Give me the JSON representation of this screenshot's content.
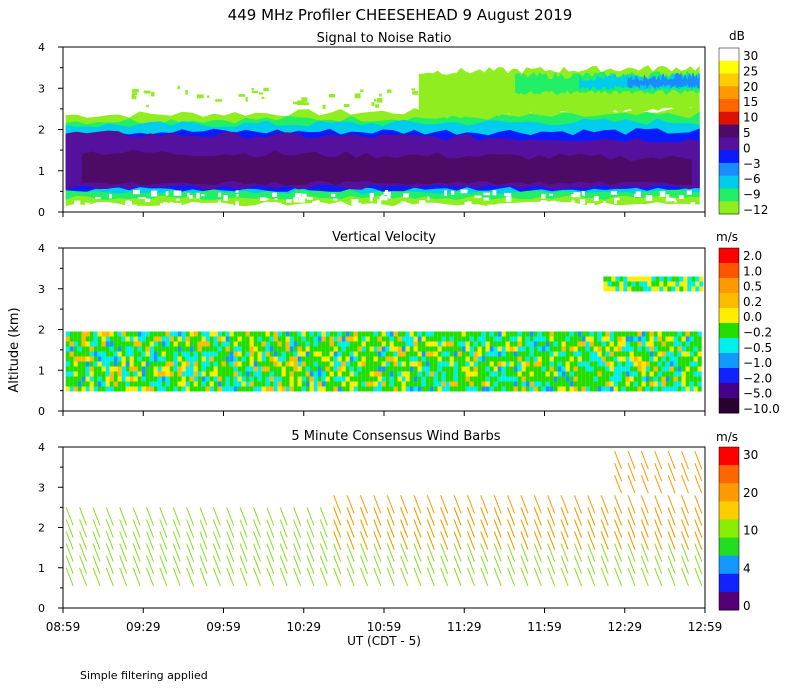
{
  "figure": {
    "title": "449 MHz Profiler CHEESEHEAD  9 August 2019",
    "ylabel": "Altitude (km)",
    "xlabel": "UT  (CDT - 5)",
    "footnote": "Simple filtering applied",
    "x_ticks": [
      "08:59",
      "09:29",
      "09:59",
      "10:29",
      "10:59",
      "11:29",
      "11:59",
      "12:29",
      "12:59"
    ]
  },
  "chart_data": [
    {
      "type": "heatmap",
      "title": "Signal to Noise Ratio",
      "unit": "dB",
      "xlabel": "UT  (CDT - 5)",
      "ylabel": "Altitude (km)",
      "xlim_hours": [
        8.983,
        12.983
      ],
      "ylim": [
        0,
        4
      ],
      "y_ticks": [
        "0",
        "1",
        "2",
        "3",
        "4"
      ],
      "colorbar_labels": [
        "30",
        "25",
        "20",
        "15",
        "10",
        "5",
        "0",
        "−3",
        "−6",
        "−9",
        "−12"
      ],
      "colorbar_colors": [
        "#ffffff",
        "#ffff00",
        "#ffcc00",
        "#ff9900",
        "#ff6600",
        "#dd1100",
        "#4d0a66",
        "#55109e",
        "#0a1cff",
        "#1a8cff",
        "#00ccee",
        "#22ee66",
        "#90ee20"
      ],
      "bands": [
        {
          "color": "#90ee20",
          "t0": 9.0,
          "t1": 12.95,
          "z0_start": 0.2,
          "z0_end": 0.2,
          "z1_start": 2.35,
          "z1_end": 2.5
        },
        {
          "color": "#22ee66",
          "t0": 9.0,
          "t1": 12.95,
          "z0_start": 0.35,
          "z0_end": 0.35,
          "z1_start": 2.2,
          "z1_end": 2.35
        },
        {
          "color": "#00ccee",
          "t0": 9.0,
          "t1": 12.95,
          "z0_start": 0.5,
          "z0_end": 0.5,
          "z1_start": 2.1,
          "z1_end": 2.2
        },
        {
          "color": "#0a1cff",
          "t0": 9.0,
          "t1": 12.95,
          "z0_start": 0.55,
          "z0_end": 0.55,
          "z1_start": 1.95,
          "z1_end": 1.95
        },
        {
          "color": "#55109e",
          "t0": 9.0,
          "t1": 12.95,
          "z0_start": 0.6,
          "z0_end": 0.6,
          "z1_start": 1.9,
          "z1_end": 1.75
        },
        {
          "color": "#4d0a66",
          "t0": 9.1,
          "t1": 12.9,
          "z0_start": 0.7,
          "z0_end": 0.7,
          "z1_start": 1.45,
          "z1_end": 1.3
        },
        {
          "color": "#90ee20",
          "t0": 11.2,
          "t1": 12.95,
          "z0_start": 2.3,
          "z0_end": 2.5,
          "z1_start": 3.4,
          "z1_end": 3.5
        },
        {
          "color": "#22ee66",
          "t0": 11.8,
          "t1": 12.95,
          "z0_start": 2.9,
          "z0_end": 2.9,
          "z1_start": 3.3,
          "z1_end": 3.35
        },
        {
          "color": "#00ccee",
          "t0": 12.2,
          "t1": 12.95,
          "z0_start": 3.0,
          "z0_end": 3.0,
          "z1_start": 3.25,
          "z1_end": 3.3
        },
        {
          "color": "#1a8cff",
          "t0": 12.5,
          "t1": 12.95,
          "z0_start": 3.05,
          "z0_end": 3.05,
          "z1_start": 3.25,
          "z1_end": 3.3
        }
      ]
    },
    {
      "type": "heatmap",
      "title": "Vertical Velocity",
      "unit": "m/s",
      "xlim_hours": [
        8.983,
        12.983
      ],
      "ylim": [
        0,
        4
      ],
      "y_ticks": [
        "0",
        "1",
        "2",
        "3",
        "4"
      ],
      "colorbar_labels": [
        "2.0",
        "1.0",
        "0.5",
        "0.2",
        "0.0",
        "−0.2",
        "−0.5",
        "−1.0",
        "−2.0",
        "−5.0",
        "−10.0"
      ],
      "colorbar_colors": [
        "#ff0000",
        "#ff5500",
        "#ff9900",
        "#ffbb00",
        "#ffee00",
        "#22dd00",
        "#00eeee",
        "#1199ff",
        "#1122ff",
        "#440088",
        "#2a0030"
      ],
      "data_region": {
        "t0": 9.0,
        "t1": 12.95,
        "z0": 0.6,
        "z1": 1.95
      },
      "upper_region": {
        "t0": 12.35,
        "t1": 12.95,
        "z0": 3.0,
        "z1": 3.3
      },
      "dominant_colors": [
        "#22dd00",
        "#00eeee",
        "#ffee00",
        "#ffbb00",
        "#1199ff"
      ]
    },
    {
      "type": "wind_barbs",
      "title": "5 Minute Consensus Wind Barbs",
      "unit": "m/s",
      "xlim_hours": [
        8.983,
        12.983
      ],
      "ylim": [
        0,
        4
      ],
      "y_ticks": [
        "0",
        "1",
        "2",
        "3",
        "4"
      ],
      "colorbar_labels": [
        "30",
        "20",
        "10",
        "4",
        "0"
      ],
      "colorbar_colors": [
        "#ff0000",
        "#ff6600",
        "#ff9900",
        "#ffcc00",
        "#88ee00",
        "#22dd22",
        "#1199ff",
        "#1122ff",
        "#550077"
      ],
      "barb_interval_min": 5,
      "low_layer": {
        "z0": 0.8,
        "z1": 2.5,
        "speed_ms": 10,
        "color": "#88dd22"
      },
      "mid_layer_orange": {
        "t_start": 10.6,
        "z0": 1.9,
        "z1": 2.8,
        "speed_ms": 18,
        "color": "#ff9900"
      },
      "upper_layer": {
        "t0": 12.4,
        "t1": 12.95,
        "z0": 3.2,
        "z1": 3.9,
        "speed_ms": 18,
        "color": "#ff9900"
      }
    }
  ]
}
